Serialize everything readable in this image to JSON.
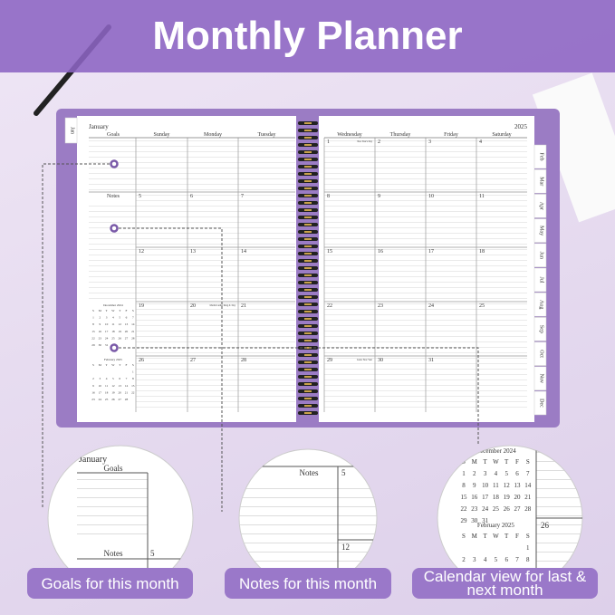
{
  "header": {
    "title": "Monthly Planner"
  },
  "planner": {
    "month": "January",
    "year": "2025",
    "goals": "Goals",
    "notes": "Notes",
    "days": [
      "Sunday",
      "Monday",
      "Tuesday",
      "Wednesday",
      "Thursday",
      "Friday",
      "Saturday"
    ],
    "weeks": [
      [
        null,
        null,
        null,
        1,
        2,
        3,
        4
      ],
      [
        5,
        6,
        7,
        8,
        9,
        10,
        11
      ],
      [
        12,
        13,
        14,
        15,
        16,
        17,
        18
      ],
      [
        19,
        20,
        21,
        22,
        23,
        24,
        25
      ],
      [
        26,
        27,
        28,
        29,
        30,
        31
      ]
    ],
    "holidays": {
      "1": "New Year's Day",
      "20": "Martin Luther King Jr. Day",
      "29": "Lunar New Year"
    },
    "tabs": [
      "Jan",
      "Feb",
      "Mar",
      "Apr",
      "May",
      "Jun",
      "Jul",
      "Aug",
      "Sep",
      "Oct",
      "Nov",
      "Dec"
    ],
    "mini": [
      {
        "title": "December 2024",
        "weekdays": [
          "S",
          "M",
          "T",
          "W",
          "T",
          "F",
          "S"
        ],
        "weeks": [
          [
            1,
            2,
            3,
            4,
            5,
            6,
            7
          ],
          [
            8,
            9,
            10,
            11,
            12,
            13,
            14
          ],
          [
            15,
            16,
            17,
            18,
            19,
            20,
            21
          ],
          [
            22,
            23,
            24,
            25,
            26,
            27,
            28
          ],
          [
            29,
            30,
            31
          ]
        ]
      },
      {
        "title": "February 2025",
        "weekdays": [
          "S",
          "M",
          "T",
          "W",
          "T",
          "F",
          "S"
        ],
        "weeks": [
          [
            null,
            null,
            null,
            null,
            null,
            null,
            1
          ],
          [
            2,
            3,
            4,
            5,
            6,
            7,
            8
          ],
          [
            9,
            10,
            11,
            12,
            13,
            14,
            15
          ],
          [
            16,
            17,
            18,
            19,
            20,
            21,
            22
          ],
          [
            23,
            24,
            25,
            26,
            27,
            28
          ]
        ]
      }
    ]
  },
  "callouts": [
    "Goals for this month",
    "Notes for this month",
    "Calendar view for last & next month"
  ]
}
